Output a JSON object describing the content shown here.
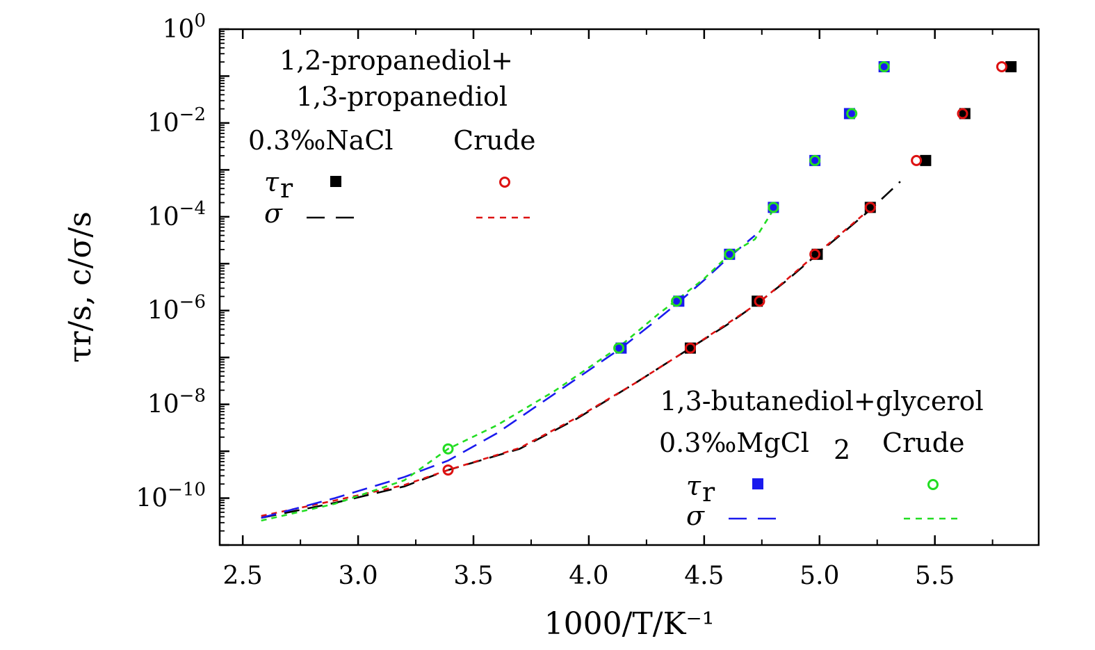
{
  "chart_data": {
    "type": "scatter",
    "xlabel": "1000/T/K⁻¹",
    "ylabel": "τr/s, c/σ/s",
    "xlim": [
      2.4,
      5.95
    ],
    "ylim_log10": [
      -11,
      0
    ],
    "y_scale": "log",
    "x_ticks": [
      "2.5",
      "3.0",
      "3.5",
      "4.0",
      "4.5",
      "5.0",
      "5.5"
    ],
    "y_tick_exponents": [
      "0",
      "−2",
      "−4",
      "−6",
      "−8",
      "−10"
    ],
    "y_tick_base": "10",
    "legends": [
      {
        "title_line1": "1,2-propanediol+",
        "title_line2": "1,3-propanediol",
        "col1": "0.3‰NaCl",
        "col2": "Crude",
        "row_tau": "τ",
        "row_tau_sub": "r",
        "row_sigma": "σ"
      },
      {
        "title_line1": "1,3-butanediol+glycerol",
        "col1_main": "0.3‰MgCl",
        "col1_sub": "2",
        "col2": "Crude",
        "row_tau": "τ",
        "row_tau_sub": "r",
        "row_sigma": "σ"
      }
    ],
    "series": [
      {
        "name": "1,2-propanediol+1,3-propanediol 0.3‰NaCl τr",
        "marker": "filled-square",
        "color": "#000000",
        "points": [
          [
            4.44,
            -6.8
          ],
          [
            4.73,
            -5.8
          ],
          [
            4.99,
            -4.8
          ],
          [
            5.22,
            -3.8
          ],
          [
            5.46,
            -2.8
          ],
          [
            5.63,
            -1.8
          ],
          [
            5.83,
            -0.8
          ]
        ]
      },
      {
        "name": "1,2-propanediol+1,3-propanediol Crude τr",
        "marker": "open-circle",
        "color": "#dd1111",
        "points": [
          [
            3.39,
            -9.4
          ],
          [
            4.44,
            -6.8
          ],
          [
            4.74,
            -5.8
          ],
          [
            4.98,
            -4.8
          ],
          [
            5.22,
            -3.8
          ],
          [
            5.42,
            -2.8
          ],
          [
            5.62,
            -1.8
          ],
          [
            5.79,
            -0.8
          ]
        ]
      },
      {
        "name": "1,3-butanediol+glycerol 0.3‰MgCl2 τr",
        "marker": "filled-square",
        "color": "#1a1aee",
        "points": [
          [
            4.14,
            -6.8
          ],
          [
            4.39,
            -5.8
          ],
          [
            4.61,
            -4.8
          ],
          [
            4.8,
            -3.8
          ],
          [
            4.98,
            -2.8
          ],
          [
            5.13,
            -1.8
          ],
          [
            5.28,
            -0.8
          ]
        ]
      },
      {
        "name": "1,3-butanediol+glycerol Crude τr",
        "marker": "open-circle",
        "color": "#22dd22",
        "points": [
          [
            3.39,
            -8.95
          ],
          [
            4.13,
            -6.8
          ],
          [
            4.38,
            -5.8
          ],
          [
            4.61,
            -4.8
          ],
          [
            4.8,
            -3.8
          ],
          [
            4.98,
            -2.8
          ],
          [
            5.14,
            -1.8
          ],
          [
            5.28,
            -0.8
          ]
        ]
      },
      {
        "name": "1,2-propanediol+1,3-propanediol 0.3‰NaCl σ",
        "line": "long-dash",
        "color": "#000000",
        "points": [
          [
            2.58,
            -10.42
          ],
          [
            2.9,
            -10.1
          ],
          [
            3.2,
            -9.75
          ],
          [
            3.39,
            -9.4
          ],
          [
            3.7,
            -8.95
          ],
          [
            3.95,
            -8.3
          ],
          [
            4.2,
            -7.55
          ],
          [
            4.44,
            -6.8
          ],
          [
            4.6,
            -6.3
          ],
          [
            4.73,
            -5.85
          ],
          [
            4.86,
            -5.35
          ],
          [
            4.99,
            -4.8
          ],
          [
            5.1,
            -4.35
          ],
          [
            5.22,
            -3.85
          ],
          [
            5.35,
            -3.25
          ]
        ]
      },
      {
        "name": "1,2-propanediol+1,3-propanediol Crude σ",
        "line": "short-dash",
        "color": "#dd1111",
        "points": [
          [
            2.58,
            -10.38
          ],
          [
            2.9,
            -10.05
          ],
          [
            3.2,
            -9.72
          ],
          [
            3.39,
            -9.4
          ],
          [
            3.7,
            -8.93
          ],
          [
            3.95,
            -8.28
          ],
          [
            4.2,
            -7.55
          ],
          [
            4.44,
            -6.8
          ],
          [
            4.6,
            -6.28
          ],
          [
            4.74,
            -5.82
          ],
          [
            4.86,
            -5.33
          ],
          [
            4.98,
            -4.82
          ],
          [
            5.1,
            -4.33
          ],
          [
            5.22,
            -3.83
          ]
        ]
      },
      {
        "name": "1,3-butanediol+glycerol 0.3‰MgCl2 σ",
        "line": "long-dash",
        "color": "#1a1aee",
        "points": [
          [
            2.58,
            -10.42
          ],
          [
            2.9,
            -10.0
          ],
          [
            3.2,
            -9.55
          ],
          [
            3.39,
            -9.2
          ],
          [
            3.6,
            -8.62
          ],
          [
            3.85,
            -7.78
          ],
          [
            4.14,
            -6.8
          ],
          [
            4.3,
            -6.18
          ],
          [
            4.39,
            -5.82
          ],
          [
            4.5,
            -5.35
          ],
          [
            4.61,
            -4.85
          ],
          [
            4.72,
            -4.4
          ]
        ]
      },
      {
        "name": "1,3-butanediol+glycerol Crude σ",
        "line": "short-dash",
        "color": "#22dd22",
        "points": [
          [
            2.58,
            -10.48
          ],
          [
            2.9,
            -10.12
          ],
          [
            3.2,
            -9.62
          ],
          [
            3.39,
            -8.95
          ],
          [
            3.6,
            -8.45
          ],
          [
            3.85,
            -7.72
          ],
          [
            4.13,
            -6.78
          ],
          [
            4.3,
            -6.08
          ],
          [
            4.38,
            -5.78
          ],
          [
            4.5,
            -5.32
          ],
          [
            4.61,
            -4.8
          ],
          [
            4.72,
            -4.48
          ],
          [
            4.8,
            -3.85
          ]
        ]
      }
    ]
  }
}
